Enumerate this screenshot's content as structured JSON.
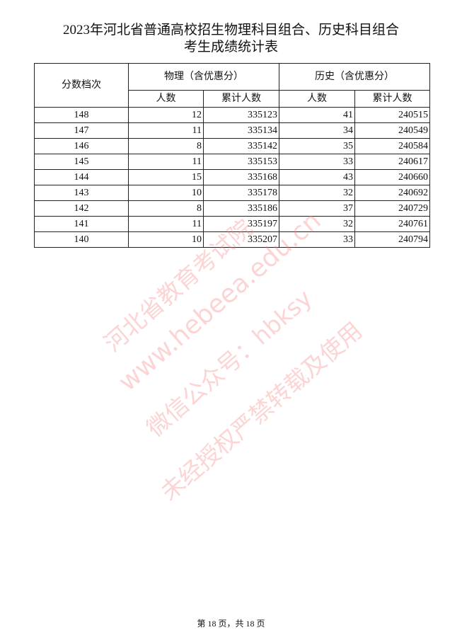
{
  "title": {
    "line1": "2023年河北省普通高校招生物理科目组合、历史科目组合",
    "line2": "考生成绩统计表"
  },
  "table": {
    "score_header": "分数档次",
    "physics_header": "物理（含优惠分）",
    "history_header": "历史（含优惠分）",
    "count_header": "人数",
    "cumulative_header": "累计人数",
    "rows": [
      [
        "148",
        "12",
        "335123",
        "41",
        "240515"
      ],
      [
        "147",
        "11",
        "335134",
        "34",
        "240549"
      ],
      [
        "146",
        "8",
        "335142",
        "35",
        "240584"
      ],
      [
        "145",
        "11",
        "335153",
        "33",
        "240617"
      ],
      [
        "144",
        "15",
        "335168",
        "43",
        "240660"
      ],
      [
        "143",
        "10",
        "335178",
        "32",
        "240692"
      ],
      [
        "142",
        "8",
        "335186",
        "37",
        "240729"
      ],
      [
        "141",
        "11",
        "335197",
        "32",
        "240761"
      ],
      [
        "140",
        "10",
        "335207",
        "33",
        "240794"
      ]
    ]
  },
  "watermark": [
    "河北省教育考试院",
    "www.hebeea.edu.cn",
    "微信公众号：hbksy",
    "未经授权严禁转载及使用"
  ],
  "footer": "第 18 页，共 18 页"
}
